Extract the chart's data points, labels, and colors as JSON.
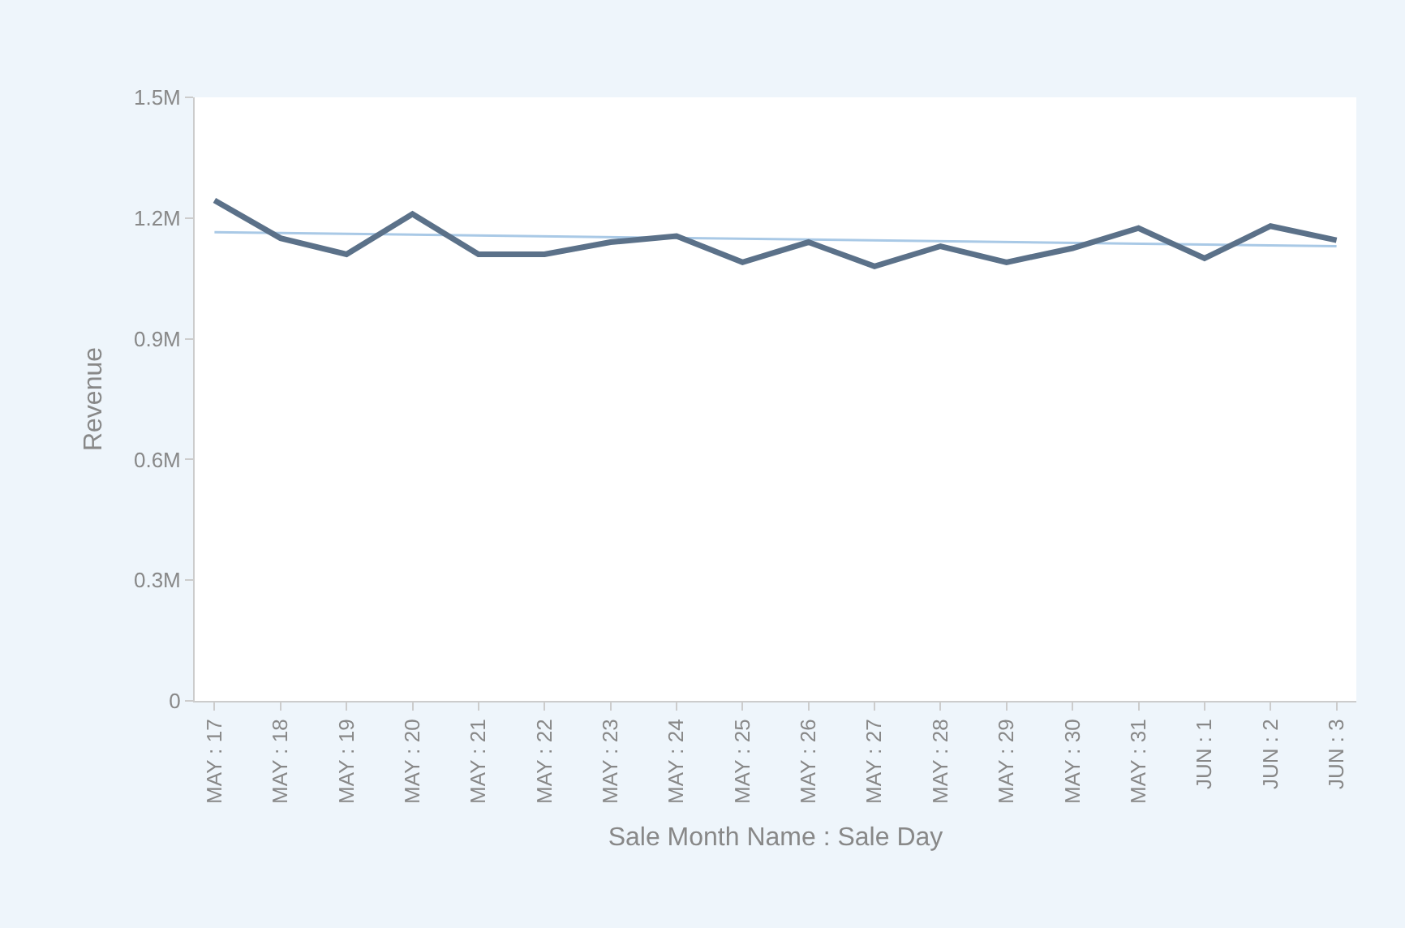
{
  "chart_data": {
    "type": "line",
    "xlabel": "Sale Month Name : Sale Day",
    "ylabel": "Revenue",
    "categories": [
      "MAY : 17",
      "MAY : 18",
      "MAY : 19",
      "MAY : 20",
      "MAY : 21",
      "MAY : 22",
      "MAY : 23",
      "MAY : 24",
      "MAY : 25",
      "MAY : 26",
      "MAY : 27",
      "MAY : 28",
      "MAY : 29",
      "MAY : 30",
      "MAY : 31",
      "JUN : 1",
      "JUN : 2",
      "JUN : 3"
    ],
    "series": [
      {
        "color": "#5b7189",
        "values": [
          1244000,
          1150000,
          1110000,
          1210000,
          1110000,
          1110000,
          1140000,
          1155000,
          1090000,
          1140000,
          1080000,
          1130000,
          1090000,
          1125000,
          1175000,
          1100000,
          1180000,
          1145000
        ]
      },
      {
        "color": "#a9c9e6",
        "values": [
          1165000,
          null,
          null,
          null,
          null,
          null,
          null,
          null,
          null,
          null,
          null,
          null,
          null,
          null,
          null,
          null,
          null,
          1130000
        ]
      }
    ],
    "ylim": [
      0,
      1500000
    ],
    "yticks": [
      {
        "value": 0,
        "label": "0"
      },
      {
        "value": 300000,
        "label": "0.3M"
      },
      {
        "value": 600000,
        "label": "0.6M"
      },
      {
        "value": 900000,
        "label": "0.9M"
      },
      {
        "value": 1200000,
        "label": "1.2M"
      },
      {
        "value": 1500000,
        "label": "1.5M"
      }
    ],
    "marker": "none",
    "line_style": "solid"
  }
}
